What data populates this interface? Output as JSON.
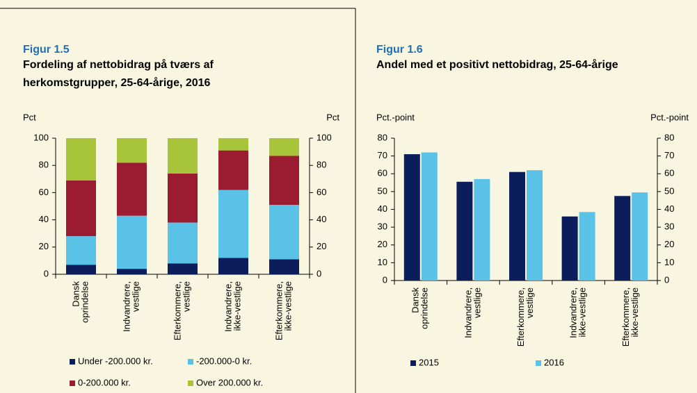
{
  "chart_data": [
    {
      "type": "stacked_bar",
      "figure_label": "Figur 1.5",
      "title": [
        "Fordeling af nettobidrag på tværs af",
        "herkomstgrupper, 25-64-årige, 2016"
      ],
      "ylabel": "Pct",
      "y2label": "Pct",
      "categories": [
        [
          "Dansk",
          "oprindelse"
        ],
        [
          "Indvandrere,",
          "vestlige"
        ],
        [
          "Efterkommere,",
          "vestlige"
        ],
        [
          "Indvandrere,",
          "ikke-vestlige"
        ],
        [
          "Efterkommere,",
          "ikke-vestlige"
        ]
      ],
      "series": [
        {
          "name": "Under -200.000 kr.",
          "color": "#0b1e5b",
          "values": [
            7,
            4,
            8,
            12,
            11
          ]
        },
        {
          "name": "-200.000-0 kr.",
          "color": "#5bc2e7",
          "values": [
            21,
            39,
            30,
            50,
            40
          ]
        },
        {
          "name": "0-200.000 kr.",
          "color": "#9b1b30",
          "values": [
            41,
            39,
            36,
            29,
            36
          ]
        },
        {
          "name": "Over 200.000 kr.",
          "color": "#a8c43a",
          "values": [
            31,
            18,
            26,
            9,
            13
          ]
        }
      ],
      "ylim": [
        0,
        100
      ],
      "yticks": [
        0,
        20,
        40,
        60,
        80,
        100
      ],
      "y2lim": [
        0,
        100
      ],
      "y2ticks": [
        0,
        20,
        40,
        60,
        80,
        100
      ],
      "grid": false
    },
    {
      "type": "bar",
      "figure_label": "Figur 1.6",
      "title": [
        "Andel med et positivt nettobidrag, 25-64-årige"
      ],
      "ylabel": "Pct.-point",
      "y2label": "Pct.-point",
      "categories": [
        [
          "Dansk",
          "oprindelse"
        ],
        [
          "Indvandrere,",
          "vestlige"
        ],
        [
          "Efterkommere,",
          "vestlige"
        ],
        [
          "Indvandrere,",
          "ikke-vestlige"
        ],
        [
          "Efterkommere,",
          "ikke-vestlige"
        ]
      ],
      "series": [
        {
          "name": "2015",
          "color": "#0b1e5b",
          "values": [
            71,
            55.5,
            61,
            36,
            47.5
          ]
        },
        {
          "name": "2016",
          "color": "#5bc2e7",
          "values": [
            72,
            57,
            62,
            38.5,
            49.5
          ]
        }
      ],
      "ylim": [
        0,
        80
      ],
      "yticks": [
        0,
        10,
        20,
        30,
        40,
        50,
        60,
        70,
        80
      ],
      "y2lim": [
        0,
        80
      ],
      "y2ticks": [
        0,
        10,
        20,
        30,
        40,
        50,
        60,
        70,
        80
      ],
      "grid": false
    }
  ]
}
